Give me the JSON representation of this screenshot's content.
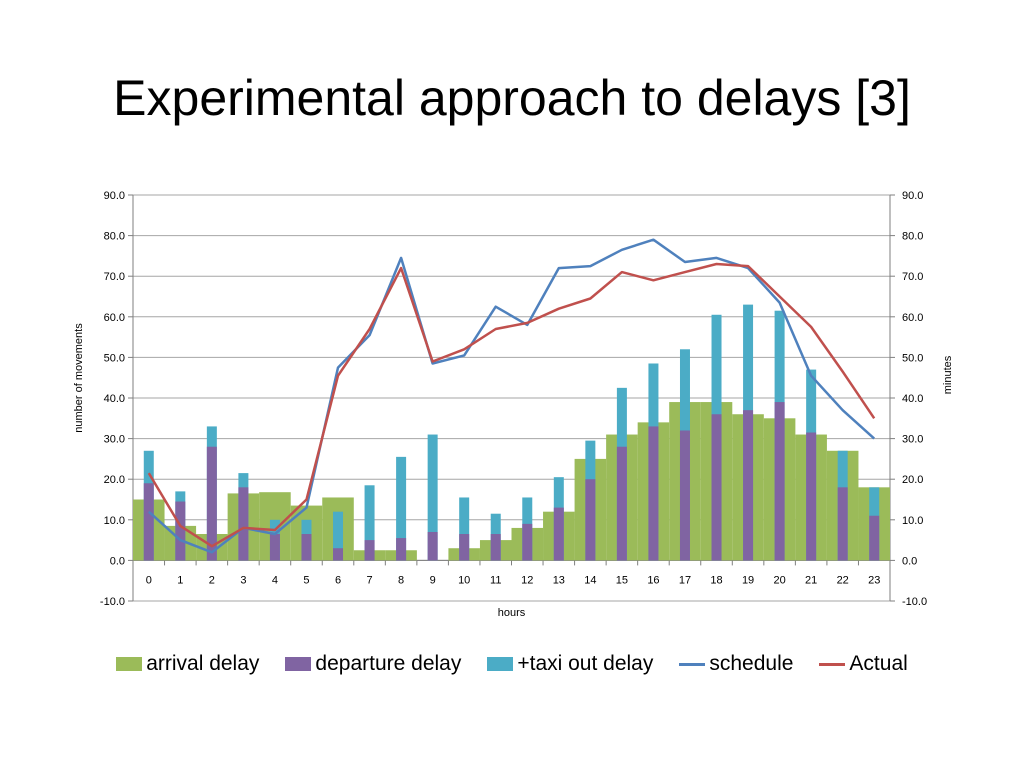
{
  "slide": {
    "title": "Experimental approach to delays [3]"
  },
  "colors": {
    "arrival": "#9BBB59",
    "departure": "#8064A2",
    "taxi": "#4BACC6",
    "schedule": "#4F81BD",
    "actual": "#C0504D",
    "grid": "#A6A6A6",
    "axis": "#7F7F7F"
  },
  "chart_data": {
    "type": "bar",
    "title": "",
    "xlabel": "hours",
    "ylabel": "number of movements",
    "ylabel_right": "minutes",
    "ylim": [
      -10,
      90
    ],
    "yticks": [
      "-10.0",
      "0.0",
      "10.0",
      "20.0",
      "30.0",
      "40.0",
      "50.0",
      "60.0",
      "70.0",
      "80.0",
      "90.0"
    ],
    "grid": true,
    "legend_position": "bottom",
    "categories": [
      "0",
      "1",
      "2",
      "3",
      "4",
      "5",
      "6",
      "7",
      "8",
      "9",
      "10",
      "11",
      "12",
      "13",
      "14",
      "15",
      "16",
      "17",
      "18",
      "19",
      "20",
      "21",
      "22",
      "23"
    ],
    "series": [
      {
        "name": "arrival delay",
        "kind": "bar",
        "values": [
          15,
          8.5,
          6.5,
          16.5,
          16.8,
          13.5,
          15.5,
          2.5,
          2.5,
          0,
          3,
          5,
          8,
          12,
          25,
          31,
          34,
          39,
          39,
          36,
          35,
          31,
          27,
          18
        ]
      },
      {
        "name": "departure delay",
        "kind": "bar",
        "values": [
          19,
          14.5,
          28,
          18,
          6.5,
          6.5,
          3,
          5,
          5.5,
          7,
          6.5,
          6.5,
          9,
          13,
          20,
          28,
          33,
          32,
          36,
          37,
          39,
          31.5,
          18,
          11
        ]
      },
      {
        "name": "+taxi out delay",
        "kind": "bar",
        "values": [
          27,
          17,
          33,
          21.5,
          10,
          10,
          12,
          18.5,
          25.5,
          31,
          15.5,
          11.5,
          15.5,
          20.5,
          29.5,
          42.5,
          48.5,
          52,
          60.5,
          63,
          61.5,
          47,
          27,
          18
        ]
      },
      {
        "name": "schedule",
        "kind": "line",
        "values": [
          12,
          5,
          2,
          8,
          6.5,
          13,
          47.5,
          55.5,
          74.5,
          48.5,
          50.5,
          62.5,
          58,
          72,
          72.5,
          76.5,
          79,
          73.5,
          74.5,
          72,
          63.5,
          45.5,
          37,
          30
        ]
      },
      {
        "name": "Actual",
        "kind": "line",
        "values": [
          21.5,
          8.5,
          3.5,
          8,
          7.5,
          15,
          45.5,
          57,
          72,
          49,
          52,
          57,
          58.5,
          62,
          64.5,
          71,
          69,
          71,
          73,
          72.5,
          65,
          57.5,
          46.5,
          35
        ]
      }
    ]
  }
}
